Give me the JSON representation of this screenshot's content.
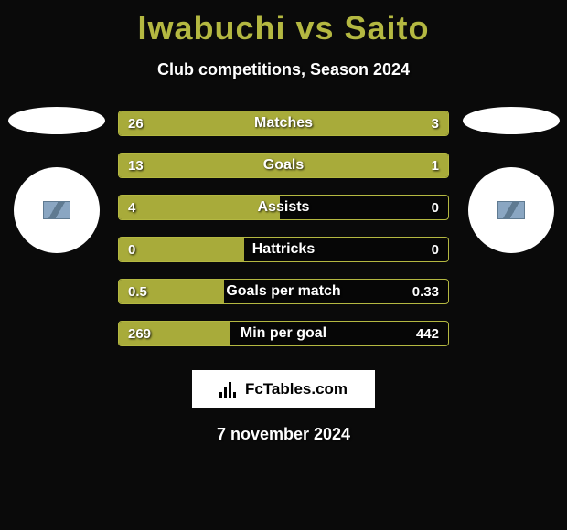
{
  "title": "Iwabuchi vs Saito",
  "subtitle": "Club competitions, Season 2024",
  "date": "7 november 2024",
  "brand": "FcTables.com",
  "colors": {
    "background": "#0a0a0a",
    "accent": "#b4b841",
    "bar_fill": "#a8ab3a",
    "text": "#ffffff",
    "brand_bg": "#ffffff",
    "brand_text": "#000000"
  },
  "stats": [
    {
      "label": "Matches",
      "left_val": "26",
      "right_val": "3",
      "left_pct": 76,
      "right_pct": 24
    },
    {
      "label": "Goals",
      "left_val": "13",
      "right_val": "1",
      "left_pct": 90,
      "right_pct": 10
    },
    {
      "label": "Assists",
      "left_val": "4",
      "right_val": "0",
      "left_pct": 49,
      "right_pct": 0
    },
    {
      "label": "Hattricks",
      "left_val": "0",
      "right_val": "0",
      "left_pct": 38,
      "right_pct": 0
    },
    {
      "label": "Goals per match",
      "left_val": "0.5",
      "right_val": "0.33",
      "left_pct": 32,
      "right_pct": 0
    },
    {
      "label": "Min per goal",
      "left_val": "269",
      "right_val": "442",
      "left_pct": 34,
      "right_pct": 0
    }
  ]
}
